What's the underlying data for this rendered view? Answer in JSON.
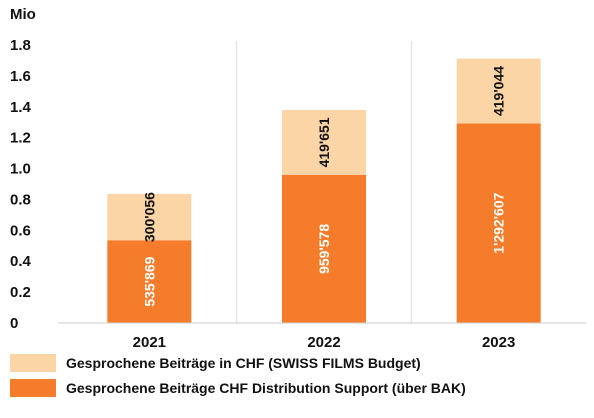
{
  "chart_data": {
    "type": "bar",
    "stacked": true,
    "orientation": "vertical",
    "unit_label": "Mio",
    "categories": [
      "2021",
      "2022",
      "2023"
    ],
    "series": [
      {
        "name": "Gesprochene Beiträge CHF Distribution Support (über BAK)",
        "values": [
          0.535869,
          0.959578,
          1.292607
        ],
        "labels": [
          "535'869",
          "959'578",
          "1'292'607"
        ],
        "color": "#f47c2a",
        "label_color": "#ffffff"
      },
      {
        "name": "Gesprochene Beiträge in CHF (SWISS FILMS Budget)",
        "values": [
          0.300056,
          0.419651,
          0.419044
        ],
        "labels": [
          "300'056",
          "419'651",
          "419'044"
        ],
        "color": "#fbd5a6",
        "label_color": "#111111"
      }
    ],
    "y_ticks": [
      "0",
      "0.2",
      "0.4",
      "0.6",
      "0.8",
      "1.0",
      "1.2",
      "1.4",
      "1.6",
      "1.8"
    ],
    "ylim": [
      0,
      1.8
    ],
    "grid": "vertical-category-lines",
    "legend_position": "bottom"
  },
  "legend": [
    {
      "label": "Gesprochene Beiträge in CHF (SWISS FILMS Budget)",
      "color": "#fbd5a6"
    },
    {
      "label": "Gesprochene Beiträge CHF Distribution Support (über BAK)",
      "color": "#f47c2a"
    }
  ]
}
